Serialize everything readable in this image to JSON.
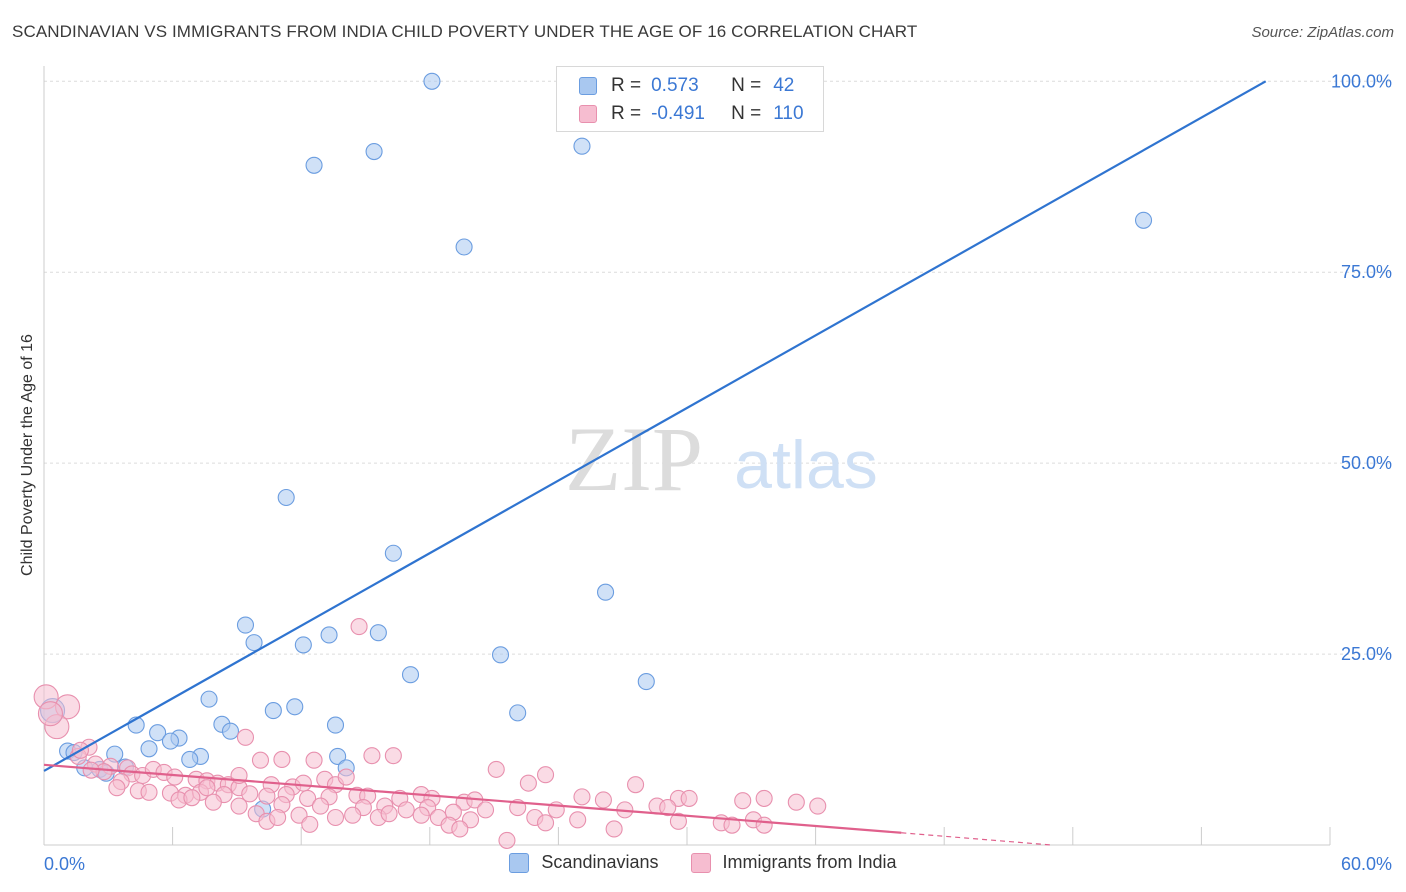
{
  "title": "SCANDINAVIAN VS IMMIGRANTS FROM INDIA CHILD POVERTY UNDER THE AGE OF 16 CORRELATION CHART",
  "source": "Source: ZipAtlas.com",
  "watermark": {
    "zip": "ZIP",
    "atlas": "atlas"
  },
  "legend_top": [
    {
      "r_label": "R =",
      "r_value": "0.573",
      "n_label": "N =",
      "n_value": "42",
      "color": "#a9c8f0",
      "border": "#6b9de0"
    },
    {
      "r_label": "R =",
      "r_value": "-0.491",
      "n_label": "N =",
      "n_value": "110",
      "color": "#f6bdd0",
      "border": "#e890ae"
    }
  ],
  "legend_bottom": [
    {
      "label": "Scandinavians",
      "color": "#a9c8f0",
      "border": "#6b9de0"
    },
    {
      "label": "Immigrants from India",
      "color": "#f6bdd0",
      "border": "#e890ae"
    }
  ],
  "chart_data": {
    "type": "scatter",
    "title": "SCANDINAVIAN VS IMMIGRANTS FROM INDIA CHILD POVERTY UNDER THE AGE OF 16 CORRELATION CHART",
    "xlabel": "",
    "ylabel": "Child Poverty Under the Age of 16",
    "xlim": [
      0,
      60
    ],
    "ylim": [
      0,
      102
    ],
    "x_tick_labels": [
      {
        "value": 0,
        "label": "0.0%"
      },
      {
        "value": 60,
        "label": "60.0%"
      }
    ],
    "y_tick_labels": [
      {
        "value": 25,
        "label": "25.0%"
      },
      {
        "value": 50,
        "label": "50.0%"
      },
      {
        "value": 75,
        "label": "75.0%"
      },
      {
        "value": 100,
        "label": "100.0%"
      }
    ],
    "grid": true,
    "series": [
      {
        "name": "Scandinavians",
        "color": "#6b9de0",
        "fill": "#a9c8f0",
        "trend": {
          "x": [
            0,
            57
          ],
          "y": [
            9.7,
            100
          ],
          "color": "#2f74d0"
        },
        "points": [
          [
            18.1,
            100
          ],
          [
            12.6,
            89
          ],
          [
            15.4,
            90.8
          ],
          [
            25.1,
            91.5
          ],
          [
            19.6,
            78.3
          ],
          [
            51.3,
            81.8
          ],
          [
            11.3,
            45.5
          ],
          [
            16.3,
            38.2
          ],
          [
            26.2,
            33.1
          ],
          [
            9.4,
            28.8
          ],
          [
            13.3,
            27.5
          ],
          [
            15.6,
            27.8
          ],
          [
            9.8,
            26.5
          ],
          [
            12.1,
            26.2
          ],
          [
            21.3,
            24.9
          ],
          [
            17.1,
            22.3
          ],
          [
            28.1,
            21.4
          ],
          [
            7.7,
            19.1
          ],
          [
            11.7,
            18.1
          ],
          [
            10.7,
            17.6
          ],
          [
            22.1,
            17.3
          ],
          [
            0.4,
            17.6
          ],
          [
            4.3,
            15.7
          ],
          [
            8.3,
            15.8
          ],
          [
            13.6,
            15.7
          ],
          [
            8.7,
            14.9
          ],
          [
            5.3,
            14.7
          ],
          [
            6.3,
            14
          ],
          [
            5.9,
            13.6
          ],
          [
            4.9,
            12.6
          ],
          [
            1.1,
            12.3
          ],
          [
            1.4,
            12.1
          ],
          [
            3.3,
            11.9
          ],
          [
            7.3,
            11.6
          ],
          [
            6.8,
            11.2
          ],
          [
            13.7,
            11.6
          ],
          [
            14.1,
            10.1
          ],
          [
            1.9,
            10.1
          ],
          [
            3.8,
            10.2
          ],
          [
            2.6,
            9.9
          ],
          [
            2.9,
            9.4
          ],
          [
            10.2,
            4.7
          ]
        ]
      },
      {
        "name": "Immigrants from India",
        "color": "#e890ae",
        "fill": "#f6bdd0",
        "trend": {
          "x": [
            0,
            40
          ],
          "y": [
            10.5,
            1.6
          ],
          "color": "#e0608c",
          "dash_to": [
            47,
            0
          ]
        },
        "points": [
          [
            0.1,
            19.4
          ],
          [
            1.1,
            18.1
          ],
          [
            0.6,
            15.5
          ],
          [
            0.3,
            17.2
          ],
          [
            14.7,
            28.6
          ],
          [
            9.4,
            14.1
          ],
          [
            2.1,
            12.8
          ],
          [
            1.6,
            11.6
          ],
          [
            1.7,
            12.4
          ],
          [
            16.3,
            11.7
          ],
          [
            15.3,
            11.7
          ],
          [
            10.1,
            11.1
          ],
          [
            11.1,
            11.2
          ],
          [
            12.6,
            11.1
          ],
          [
            21.1,
            9.9
          ],
          [
            23.4,
            9.2
          ],
          [
            2.4,
            10.6
          ],
          [
            3.1,
            10.3
          ],
          [
            3.9,
            10.1
          ],
          [
            2.8,
            9.6
          ],
          [
            4.1,
            9.3
          ],
          [
            4.6,
            9.1
          ],
          [
            5.1,
            9.9
          ],
          [
            5.6,
            9.5
          ],
          [
            6.1,
            8.9
          ],
          [
            7.1,
            8.6
          ],
          [
            7.6,
            8.4
          ],
          [
            8.1,
            8.1
          ],
          [
            8.6,
            7.9
          ],
          [
            9.1,
            7.5
          ],
          [
            10.6,
            7.9
          ],
          [
            11.6,
            7.6
          ],
          [
            12.1,
            8.1
          ],
          [
            13.1,
            8.6
          ],
          [
            13.6,
            7.9
          ],
          [
            14.1,
            8.9
          ],
          [
            22.6,
            8.1
          ],
          [
            27.6,
            7.9
          ],
          [
            3.6,
            8.3
          ],
          [
            4.4,
            7.1
          ],
          [
            4.9,
            6.9
          ],
          [
            5.9,
            6.8
          ],
          [
            6.6,
            6.5
          ],
          [
            7.3,
            6.9
          ],
          [
            8.4,
            6.6
          ],
          [
            9.6,
            6.7
          ],
          [
            10.4,
            6.4
          ],
          [
            11.3,
            6.6
          ],
          [
            12.3,
            6.1
          ],
          [
            13.3,
            6.3
          ],
          [
            14.6,
            6.5
          ],
          [
            15.1,
            6.4
          ],
          [
            16.6,
            6.1
          ],
          [
            17.6,
            6.6
          ],
          [
            18.1,
            6.1
          ],
          [
            19.6,
            5.6
          ],
          [
            20.1,
            5.9
          ],
          [
            25.1,
            6.3
          ],
          [
            26.1,
            5.9
          ],
          [
            28.6,
            5.1
          ],
          [
            29.6,
            6.1
          ],
          [
            30.1,
            6.1
          ],
          [
            32.6,
            5.8
          ],
          [
            33.6,
            6.1
          ],
          [
            35.1,
            5.6
          ],
          [
            36.1,
            5.1
          ],
          [
            6.3,
            5.9
          ],
          [
            7.9,
            5.6
          ],
          [
            9.1,
            5.1
          ],
          [
            11.1,
            5.3
          ],
          [
            12.9,
            5.1
          ],
          [
            14.9,
            4.9
          ],
          [
            15.9,
            5.1
          ],
          [
            16.9,
            4.6
          ],
          [
            17.9,
            4.9
          ],
          [
            19.1,
            4.3
          ],
          [
            20.6,
            4.6
          ],
          [
            22.1,
            4.9
          ],
          [
            23.9,
            4.6
          ],
          [
            27.1,
            4.6
          ],
          [
            29.1,
            4.9
          ],
          [
            9.9,
            4.1
          ],
          [
            11.9,
            3.9
          ],
          [
            13.6,
            3.6
          ],
          [
            14.4,
            3.9
          ],
          [
            15.6,
            3.6
          ],
          [
            16.1,
            4.1
          ],
          [
            17.6,
            3.9
          ],
          [
            18.4,
            3.6
          ],
          [
            19.9,
            3.3
          ],
          [
            22.9,
            3.6
          ],
          [
            24.9,
            3.3
          ],
          [
            29.6,
            3.1
          ],
          [
            31.6,
            2.9
          ],
          [
            33.1,
            3.3
          ],
          [
            10.4,
            3.1
          ],
          [
            12.4,
            2.7
          ],
          [
            18.9,
            2.6
          ],
          [
            19.4,
            2.1
          ],
          [
            23.4,
            2.9
          ],
          [
            32.1,
            2.6
          ],
          [
            33.6,
            2.6
          ],
          [
            21.6,
            0.6
          ],
          [
            26.6,
            2.1
          ],
          [
            10.9,
            3.6
          ],
          [
            9.1,
            9.1
          ],
          [
            7.6,
            7.5
          ],
          [
            6.9,
            6.2
          ],
          [
            3.4,
            7.5
          ],
          [
            2.2,
            9.8
          ]
        ]
      }
    ]
  }
}
